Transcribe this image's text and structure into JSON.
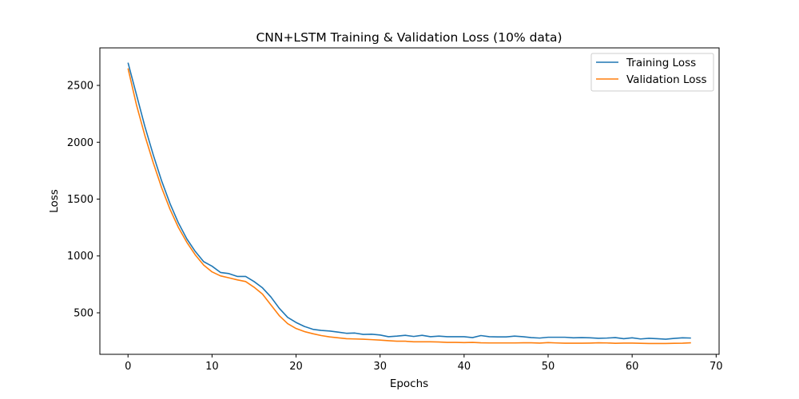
{
  "chart_data": {
    "type": "line",
    "title": "CNN+LSTM Training & Validation Loss (10% data)",
    "xlabel": "Epochs",
    "ylabel": "Loss",
    "xlim": [
      -3.35,
      70.35
    ],
    "ylim": [
      135,
      2830
    ],
    "xticks": [
      0,
      10,
      20,
      30,
      40,
      50,
      60,
      70
    ],
    "yticks": [
      500,
      1000,
      1500,
      2000,
      2500
    ],
    "grid": false,
    "legend_position": "top-right",
    "colors": {
      "Training Loss": "#1f77b4",
      "Validation Loss": "#ff7f0e"
    },
    "x": [
      0,
      1,
      2,
      3,
      4,
      5,
      6,
      7,
      8,
      9,
      10,
      11,
      12,
      13,
      14,
      15,
      16,
      17,
      18,
      19,
      20,
      21,
      22,
      23,
      24,
      25,
      26,
      27,
      28,
      29,
      30,
      31,
      32,
      33,
      34,
      35,
      36,
      37,
      38,
      39,
      40,
      41,
      42,
      43,
      44,
      45,
      46,
      47,
      48,
      49,
      50,
      51,
      52,
      53,
      54,
      55,
      56,
      57,
      58,
      59,
      60,
      61,
      62,
      63,
      64,
      65,
      66,
      67
    ],
    "series": [
      {
        "name": "Training Loss",
        "values": [
          2700,
          2420,
          2140,
          1890,
          1660,
          1460,
          1290,
          1150,
          1040,
          950,
          910,
          855,
          845,
          820,
          820,
          775,
          720,
          640,
          540,
          460,
          415,
          380,
          355,
          345,
          340,
          330,
          320,
          322,
          310,
          312,
          305,
          290,
          295,
          302,
          292,
          302,
          290,
          295,
          290,
          290,
          290,
          282,
          300,
          290,
          288,
          288,
          295,
          290,
          282,
          278,
          285,
          285,
          285,
          280,
          282,
          280,
          276,
          278,
          282,
          272,
          280,
          270,
          276,
          272,
          268,
          275,
          280,
          278
        ]
      },
      {
        "name": "Validation Loss",
        "values": [
          2650,
          2330,
          2060,
          1820,
          1600,
          1410,
          1250,
          1120,
          1010,
          920,
          860,
          825,
          808,
          790,
          775,
          725,
          665,
          570,
          475,
          405,
          362,
          335,
          316,
          300,
          288,
          280,
          272,
          270,
          268,
          264,
          260,
          255,
          250,
          250,
          245,
          245,
          245,
          243,
          240,
          240,
          238,
          240,
          236,
          235,
          235,
          235,
          235,
          236,
          236,
          234,
          238,
          235,
          233,
          233,
          233,
          234,
          236,
          235,
          232,
          234,
          234,
          232,
          230,
          230,
          230,
          232,
          233,
          236
        ]
      }
    ]
  }
}
